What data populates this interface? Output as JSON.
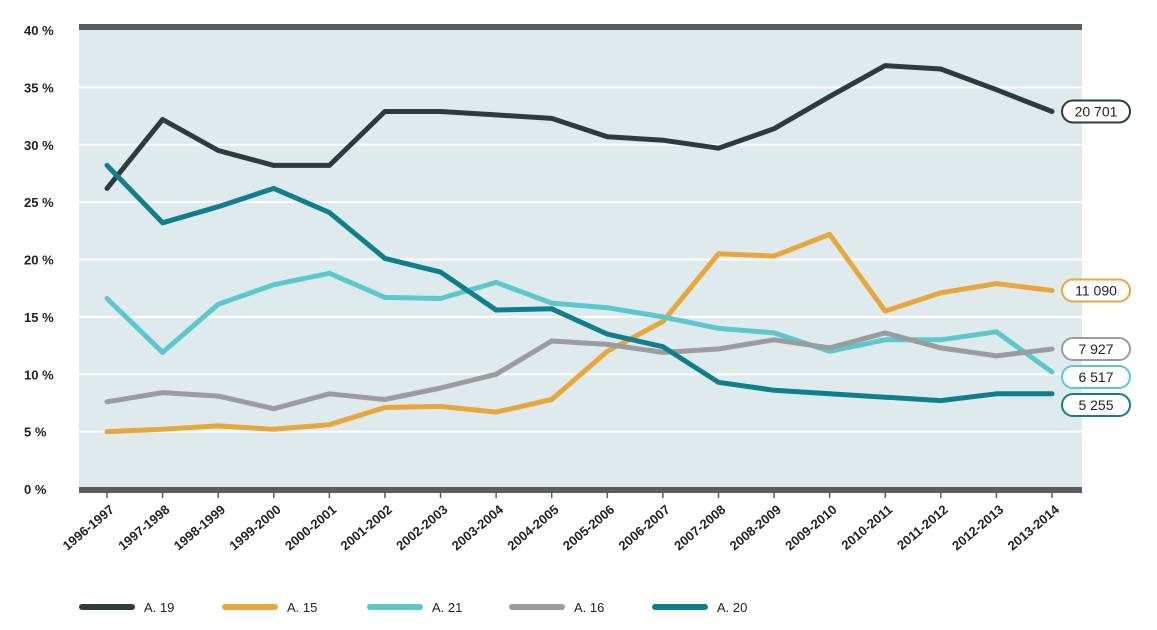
{
  "chart_data": {
    "type": "line",
    "categories": [
      "1996-1997",
      "1997-1998",
      "1998-1999",
      "1999-2000",
      "2000-2001",
      "2001-2002",
      "2002-2003",
      "2003-2004",
      "2004-2005",
      "2005-2006",
      "2006-2007",
      "2007-2008",
      "2008-2009",
      "2009-2010",
      "2010-2011",
      "2011-2012",
      "2012-2013",
      "2013-2014"
    ],
    "y_ticks": [
      "0 %",
      "5 %",
      "10 %",
      "15 %",
      "20 %",
      "25 %",
      "30 %",
      "35 %",
      "40 %"
    ],
    "ylim": [
      0,
      40
    ],
    "grid": true,
    "legend_placement": "bottom-left",
    "plot_background": "#dfeaec",
    "series": [
      {
        "name": "A. 19",
        "color": "#2e3b3d",
        "end_label": "20 701",
        "values": [
          26.2,
          32.2,
          29.5,
          28.2,
          28.2,
          32.9,
          32.9,
          32.6,
          32.3,
          30.7,
          30.4,
          29.7,
          31.4,
          34.2,
          36.9,
          36.6,
          34.8,
          32.9
        ]
      },
      {
        "name": "A. 15",
        "color": "#e8a73c",
        "end_label": "11 090",
        "values": [
          5.0,
          5.2,
          5.5,
          5.2,
          5.6,
          7.1,
          7.2,
          6.7,
          7.8,
          12.0,
          14.6,
          20.5,
          20.3,
          22.2,
          15.5,
          17.1,
          17.9,
          17.3
        ]
      },
      {
        "name": "A. 21",
        "color": "#5bc8cd",
        "end_label": "6 517",
        "values": [
          16.6,
          11.9,
          16.1,
          17.8,
          18.8,
          16.7,
          16.6,
          18.0,
          16.2,
          15.8,
          15.0,
          14.0,
          13.6,
          12.0,
          13.0,
          13.0,
          13.7,
          10.2
        ]
      },
      {
        "name": "A. 16",
        "color": "#9a9c9e",
        "end_label": "7 927",
        "values": [
          7.6,
          8.4,
          8.1,
          7.0,
          8.3,
          7.8,
          8.8,
          10.0,
          12.9,
          12.6,
          11.9,
          12.2,
          13.0,
          12.3,
          13.6,
          12.3,
          11.6,
          12.2
        ]
      },
      {
        "name": "A. 20",
        "color": "#0e7f8c",
        "end_label": "5 255",
        "values": [
          28.2,
          23.2,
          24.6,
          26.2,
          24.1,
          20.1,
          18.9,
          15.6,
          15.7,
          13.5,
          12.4,
          9.3,
          8.6,
          8.3,
          8.0,
          7.7,
          8.3,
          8.3
        ]
      }
    ]
  }
}
